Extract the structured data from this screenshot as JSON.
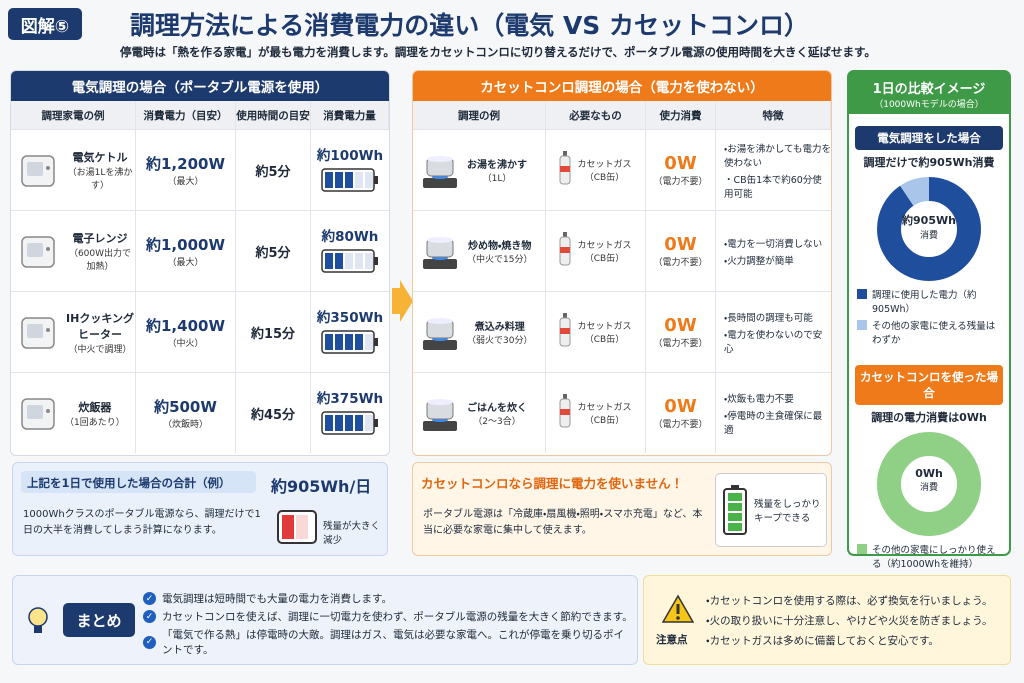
{
  "header": {
    "badge": "図解⑤",
    "title": "調理方法による消費電力の違い（電気 VS カセットコンロ）",
    "subtitle": "停電時は「熱を作る家電」が最も電力を消費します。調理をカセットコンロに切り替えるだけで、ポータブル電源の使用時間を大きく延ばせます。"
  },
  "electric": {
    "title": "電気調理の場合（ポータブル電源を使用）",
    "columns": [
      "調理家電の例",
      "消費電力（目安）",
      "使用時間の目安",
      "消費電力量"
    ],
    "rows": [
      {
        "name": "電気ケトル",
        "note": "（お湯1Lを沸かす）",
        "power": "約1,200W",
        "power_note": "（最大）",
        "time": "約5分",
        "energy": "約100Wh"
      },
      {
        "name": "電子レンジ",
        "note": "（600W出力で加熱）",
        "power": "約1,000W",
        "power_note": "（最大）",
        "time": "約5分",
        "energy": "約80Wh"
      },
      {
        "name": "IHクッキングヒーター",
        "note": "（中火で調理）",
        "power": "約1,400W",
        "power_note": "（中火）",
        "time": "約15分",
        "energy": "約350Wh"
      },
      {
        "name": "炊飯器",
        "note": "（1回あたり）",
        "power": "約500W",
        "power_note": "（炊飯時）",
        "time": "約45分",
        "energy": "約375Wh"
      }
    ]
  },
  "total": {
    "title": "上記を1日で使用した場合の合計（例）",
    "value": "約905Wh/日",
    "text": "1000Whクラスのポータブル電源なら、調理だけで1日の大半を消費してしまう計算になります。",
    "battery_label": "残量が大きく減少"
  },
  "gas": {
    "title": "カセットコンロ調理の場合（電力を使わない）",
    "columns": [
      "調理の例",
      "必要なもの",
      "使力消費",
      "特徴"
    ],
    "rows": [
      {
        "name": "お湯を沸かす",
        "note": "（1L）",
        "item": "カセットガス",
        "item_note": "（CB缶）",
        "power": "0W",
        "power_note": "（電力不要）",
        "features": [
          "お湯を沸かしても電力を使わない",
          "CB缶1本で約60分使用可能"
        ]
      },
      {
        "name": "炒め物・焼き物",
        "note": "（中火で15分）",
        "item": "カセットガス",
        "item_note": "（CB缶）",
        "power": "0W",
        "power_note": "（電力不要）",
        "features": [
          "電力を一切消費しない",
          "火力調整が簡単"
        ]
      },
      {
        "name": "煮込み料理",
        "note": "（弱火で30分）",
        "item": "カセットガス",
        "item_note": "（CB缶）",
        "power": "0W",
        "power_note": "（電力不要）",
        "features": [
          "長時間の調理も可能",
          "電力を使わないので安心"
        ]
      },
      {
        "name": "ごはんを炊く",
        "note": "（2〜3合）",
        "item": "カセットガス",
        "item_note": "（CB缶）",
        "power": "0W",
        "power_note": "（電力不要）",
        "features": [
          "炊飯も電力不要",
          "停電時の主食確保に最適"
        ]
      }
    ]
  },
  "gas_note": {
    "title": "カセットコンロなら調理に電力を使いません！",
    "text": "ポータブル電源は「冷蔵庫・扇風機・照明・スマホ充電」など、本当に必要な家電に集中して使えます。",
    "battery_label": "残量をしっかりキープできる"
  },
  "comparison": {
    "title": "1日の比較イメージ",
    "subtitle": "（1000Whモデルの場合）",
    "electric": {
      "heading": "電気調理をした場合",
      "summary": "調理だけで約905Wh消費",
      "center": "約905Wh",
      "center_sub": "消費",
      "slices": [
        {
          "value": 905,
          "color": "#1f4e9c"
        },
        {
          "value": 95,
          "color": "#a9c6ea"
        }
      ],
      "legend": [
        {
          "label": "調理に使用した電力（約905Wh）",
          "color": "#1f4e9c"
        },
        {
          "label": "その他の家電に使える残量はわずか",
          "color": "#a9c6ea"
        }
      ]
    },
    "gas": {
      "heading": "カセットコンロを使った場合",
      "summary": "調理の電力消費は0Wh",
      "center": "0Wh",
      "center_sub": "消費",
      "slices": [
        {
          "value": 0,
          "color": "#1f4e9c"
        },
        {
          "value": 1000,
          "color": "#8fcf86"
        }
      ],
      "legend": [
        {
          "label": "その他の家電にしっかり使える（約1000Whを維持）",
          "color": "#8fcf86"
        }
      ]
    }
  },
  "summary": {
    "title": "まとめ",
    "items": [
      "電気調理は短時間でも大量の電力を消費します。",
      "カセットコンロを使えば、調理に一切電力を使わず、ポータブル電源の残量を大きく節約できます。",
      "「電気で作る熱」は停電時の大敵。調理はガス、電気は必要な家電へ。これが停電を乗り切るポイントです。"
    ]
  },
  "caution": {
    "label": "注意点",
    "items": [
      "カセットコンロを使用する際は、必ず換気を行いましょう。",
      "火の取り扱いに十分注意し、やけどや火災を防ぎましょう。",
      "カセットガスは多めに備蓄しておくと安心です。"
    ]
  }
}
